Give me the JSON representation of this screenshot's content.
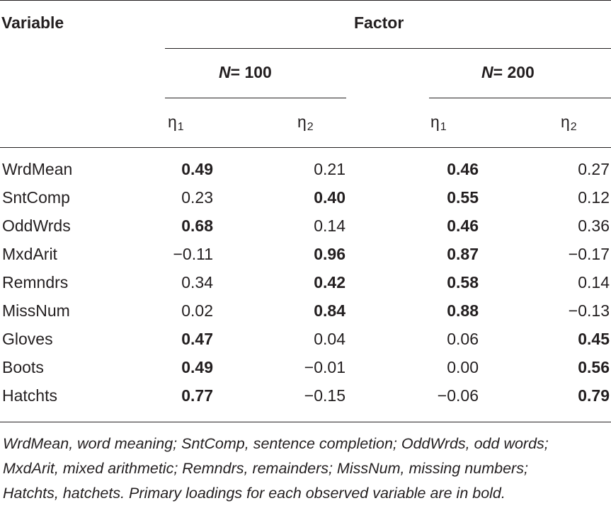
{
  "header": {
    "variable_label": "Variable",
    "factor_label": "Factor",
    "groups": [
      {
        "n_symbol": "N",
        "n_text": "= 100"
      },
      {
        "n_symbol": "N",
        "n_text": "= 200"
      }
    ],
    "subcolumns": [
      {
        "symbol": "η",
        "subscript": "1"
      },
      {
        "symbol": "η",
        "subscript": "2"
      },
      {
        "symbol": "η",
        "subscript": "1"
      },
      {
        "symbol": "η",
        "subscript": "2"
      }
    ]
  },
  "rows": [
    {
      "variable": "WrdMean",
      "values": [
        "0.49",
        "0.21",
        "0.46",
        "0.27"
      ],
      "bold": [
        true,
        false,
        true,
        false
      ]
    },
    {
      "variable": "SntComp",
      "values": [
        "0.23",
        "0.40",
        "0.55",
        "0.12"
      ],
      "bold": [
        false,
        true,
        true,
        false
      ]
    },
    {
      "variable": "OddWrds",
      "values": [
        "0.68",
        "0.14",
        "0.46",
        "0.36"
      ],
      "bold": [
        true,
        false,
        true,
        false
      ]
    },
    {
      "variable": "MxdArit",
      "values": [
        "−0.11",
        "0.96",
        "0.87",
        "−0.17"
      ],
      "bold": [
        false,
        true,
        true,
        false
      ]
    },
    {
      "variable": "Remndrs",
      "values": [
        "0.34",
        "0.42",
        "0.58",
        "0.14"
      ],
      "bold": [
        false,
        true,
        true,
        false
      ]
    },
    {
      "variable": "MissNum",
      "values": [
        "0.02",
        "0.84",
        "0.88",
        "−0.13"
      ],
      "bold": [
        false,
        true,
        true,
        false
      ]
    },
    {
      "variable": "Gloves",
      "values": [
        "0.47",
        "0.04",
        "0.06",
        "0.45"
      ],
      "bold": [
        true,
        false,
        false,
        true
      ]
    },
    {
      "variable": "Boots",
      "values": [
        "0.49",
        "−0.01",
        "0.00",
        "0.56"
      ],
      "bold": [
        true,
        false,
        false,
        true
      ]
    },
    {
      "variable": "Hatchts",
      "values": [
        "0.77",
        "−0.15",
        "−0.06",
        "0.79"
      ],
      "bold": [
        true,
        false,
        false,
        true
      ]
    }
  ],
  "footnote": [
    "WrdMean, word meaning; SntComp, sentence completion; OddWrds, odd words;",
    "MxdArit, mixed arithmetic; Remndrs, remainders; MissNum, missing numbers;",
    "Hatchts, hatchets. Primary loadings for each observed variable are in bold."
  ]
}
